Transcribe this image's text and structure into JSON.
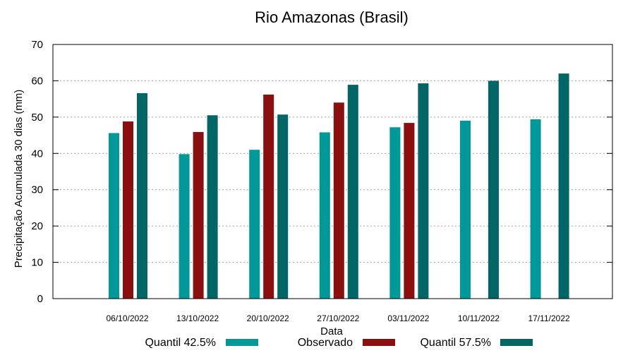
{
  "chart_data": {
    "type": "bar",
    "title": "Rio Amazonas (Brasil)",
    "xlabel": "Data",
    "ylabel": "Precipitação Acumulada 30 dias (mm)",
    "ylim": [
      0,
      70
    ],
    "yticks": [
      0,
      10,
      20,
      30,
      40,
      50,
      60,
      70
    ],
    "grid": true,
    "legend_position": "bottom",
    "categories": [
      "06/10/2022",
      "13/10/2022",
      "20/10/2022",
      "27/10/2022",
      "03/11/2022",
      "10/11/2022",
      "17/11/2022"
    ],
    "series": [
      {
        "name": "Quantil 42.5%",
        "color": "#009999",
        "values": [
          45.6,
          39.8,
          41.0,
          45.8,
          47.2,
          49.0,
          49.4
        ]
      },
      {
        "name": "Observado",
        "color": "#8b0f0f",
        "values": [
          48.8,
          45.9,
          56.2,
          54.0,
          48.4,
          null,
          null
        ]
      },
      {
        "name": "Quantil 57.5%",
        "color": "#006666",
        "values": [
          56.6,
          50.5,
          50.7,
          58.9,
          59.3,
          60.0,
          62.0
        ]
      }
    ]
  }
}
